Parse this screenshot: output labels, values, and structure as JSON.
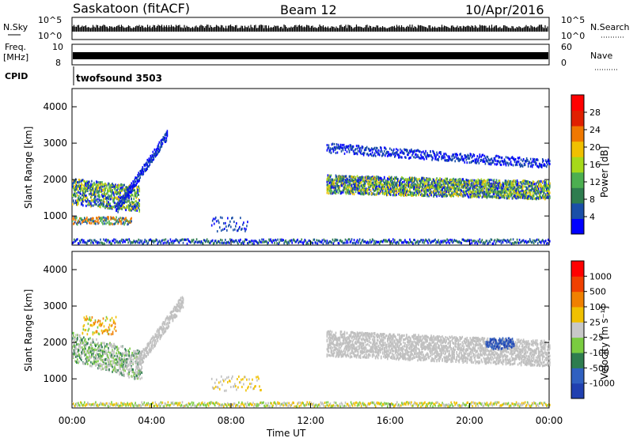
{
  "header": {
    "station": "Saskatoon (fitACF)",
    "beam": "Beam 12",
    "date": "10/Apr/2016"
  },
  "strips": {
    "nsky_label": "N.Sky",
    "nsky_ticks": [
      "10^5",
      "10^0"
    ],
    "nsearch_label": "N.Search",
    "freq_label_1": "Freq.",
    "freq_label_2": "[MHz]",
    "freq_ticks": [
      "10",
      "8"
    ],
    "nave_ticks": [
      "60",
      "0"
    ],
    "nave_label": "Nave",
    "cpid_label": "CPID",
    "cpid_value": "twofsound 3503"
  },
  "colors": {
    "scale": [
      "#0000ff",
      "#1a4fa8",
      "#2e7d4f",
      "#4caf50",
      "#a6d91a",
      "#f0c000",
      "#f07800",
      "#e02000",
      "#ff0000"
    ],
    "velocity_scale": [
      "#2040b0",
      "#3060c0",
      "#2e7d4f",
      "#7acc40",
      "#c8c8c8",
      "#f0c000",
      "#f08000",
      "#f04000",
      "#ff0000"
    ],
    "ground_scatter": "#c0c0c0"
  },
  "chart_data": [
    {
      "type": "heatmap",
      "ylabel": "Slant Range [km]",
      "yticks": [
        "1000",
        "2000",
        "3000",
        "4000"
      ],
      "ylim": [
        200,
        4500
      ],
      "xlim": [
        "00:00",
        "24:00"
      ],
      "colorbar": {
        "label": "Power [dB]",
        "ticks": [
          "4",
          "8",
          "12",
          "16",
          "20",
          "24",
          "28"
        ]
      }
    },
    {
      "type": "heatmap",
      "ylabel": "Slant Range [km]",
      "yticks": [
        "1000",
        "2000",
        "3000",
        "4000"
      ],
      "ylim": [
        200,
        4500
      ],
      "xlim": [
        "00:00",
        "24:00"
      ],
      "xlabel": "Time UT",
      "xticks": [
        "00:00",
        "04:00",
        "08:00",
        "12:00",
        "16:00",
        "20:00",
        "00:00"
      ],
      "colorbar": {
        "label": "Velocity [m s⁻¹]",
        "ticks": [
          "1000",
          "500",
          "100",
          "25",
          "-25",
          "-100",
          "-500",
          "-1000"
        ]
      }
    }
  ]
}
